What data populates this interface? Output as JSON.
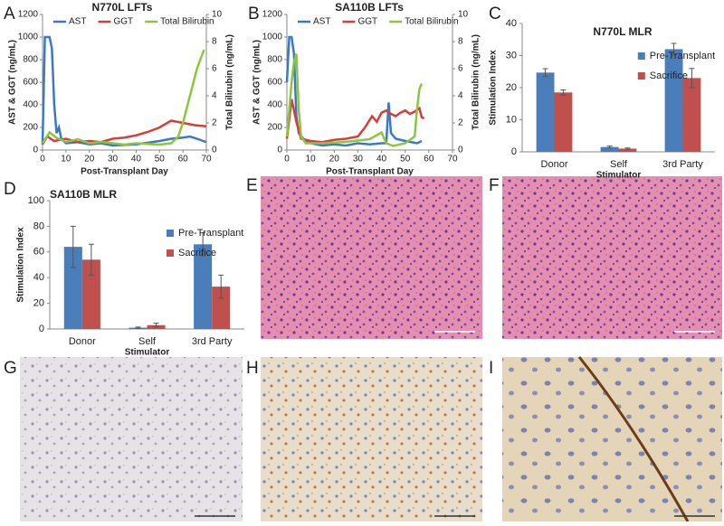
{
  "panel_labels": [
    "A",
    "B",
    "C",
    "D",
    "E",
    "F",
    "G",
    "H",
    "I"
  ],
  "chart_data": [
    {
      "type": "line",
      "title": "N770L LFTs",
      "xlabel": "Post-Transplant Day",
      "ylabel": "AST & GGT (ng/mL)",
      "y2label": "Total Bilirubin (ng/mL)",
      "xlim": [
        0,
        70
      ],
      "xticks": [
        0,
        10,
        20,
        30,
        40,
        50,
        60,
        70
      ],
      "ylim": [
        0,
        1200
      ],
      "yticks": [
        0,
        200,
        400,
        600,
        800,
        1000,
        1200
      ],
      "y2lim": [
        0,
        10
      ],
      "y2ticks": [
        0,
        2,
        4,
        6,
        8,
        10
      ],
      "legend": "top",
      "series": [
        {
          "name": "AST",
          "color": "#3c78c8",
          "x": [
            0,
            1,
            3,
            4,
            5,
            6,
            7,
            8,
            10,
            15,
            20,
            25,
            30,
            40,
            50,
            55,
            60,
            63,
            66,
            70
          ],
          "values": [
            50,
            1000,
            1000,
            900,
            400,
            150,
            200,
            100,
            60,
            70,
            50,
            60,
            40,
            50,
            80,
            100,
            110,
            120,
            100,
            70
          ]
        },
        {
          "name": "GGT",
          "color": "#d2403a",
          "x": [
            0,
            2,
            5,
            10,
            15,
            20,
            25,
            30,
            35,
            40,
            45,
            50,
            55,
            60,
            65,
            70
          ],
          "values": [
            50,
            120,
            80,
            100,
            70,
            80,
            70,
            100,
            110,
            130,
            160,
            200,
            260,
            240,
            220,
            210
          ]
        },
        {
          "name": "Total Bilirubin",
          "color": "#8cc63f",
          "axis": "y2",
          "x": [
            0,
            3,
            6,
            10,
            15,
            20,
            25,
            30,
            35,
            40,
            50,
            55,
            58,
            60,
            63,
            66,
            69
          ],
          "values": [
            0.5,
            1.3,
            0.9,
            0.6,
            0.8,
            0.5,
            0.6,
            0.5,
            0.4,
            0.5,
            0.4,
            0.5,
            1.0,
            2.0,
            4,
            6,
            7.4
          ]
        }
      ]
    },
    {
      "type": "line",
      "title": "SA110B LFTs",
      "xlabel": "Post-Transplant Day",
      "ylabel": "AST & GGT (ng/mL)",
      "y2label": "Total Bilirubin (ng/mL)",
      "xlim": [
        0,
        70
      ],
      "xticks": [
        0,
        10,
        20,
        30,
        40,
        50,
        60,
        70
      ],
      "ylim": [
        0,
        1200
      ],
      "yticks": [
        0,
        200,
        400,
        600,
        800,
        1000,
        1200
      ],
      "y2lim": [
        0,
        10
      ],
      "y2ticks": [
        0,
        2,
        4,
        6,
        8,
        10
      ],
      "legend": "top",
      "series": [
        {
          "name": "AST",
          "color": "#3c78c8",
          "x": [
            0,
            1,
            2,
            3,
            4,
            5,
            7,
            10,
            15,
            20,
            25,
            30,
            35,
            40,
            42,
            43,
            44,
            46,
            50,
            55,
            57
          ],
          "values": [
            600,
            1000,
            1000,
            850,
            300,
            150,
            100,
            60,
            40,
            50,
            40,
            60,
            50,
            60,
            60,
            420,
            150,
            100,
            80,
            60,
            80
          ]
        },
        {
          "name": "GGT",
          "color": "#d2403a",
          "x": [
            0,
            2,
            4,
            6,
            10,
            15,
            20,
            25,
            30,
            33,
            36,
            38,
            40,
            42,
            44,
            46,
            48,
            50,
            52,
            54,
            56,
            57,
            58
          ],
          "values": [
            100,
            450,
            250,
            100,
            80,
            70,
            90,
            100,
            120,
            200,
            300,
            250,
            330,
            350,
            320,
            300,
            330,
            350,
            320,
            340,
            370,
            290,
            280
          ]
        },
        {
          "name": "Total Bilirubin",
          "color": "#8cc63f",
          "axis": "y2",
          "x": [
            0,
            2,
            3,
            4,
            5,
            6,
            8,
            15,
            25,
            30,
            35,
            40,
            42,
            45,
            50,
            54,
            55,
            56,
            57
          ],
          "values": [
            1,
            5,
            6.5,
            7.1,
            3,
            1,
            0.5,
            0.5,
            0.6,
            0.7,
            0.8,
            1.3,
            0.5,
            0.3,
            0.5,
            1,
            3,
            4.5,
            4.9
          ]
        }
      ]
    },
    {
      "type": "bar",
      "title": "N770L MLR",
      "xlabel": "Stimulator",
      "ylabel": "Stimulation Index",
      "categories": [
        "Donor",
        "Self",
        "3rd Party"
      ],
      "ylim": [
        0,
        40
      ],
      "yticks": [
        0,
        10,
        20,
        30,
        40
      ],
      "legend": "right",
      "series": [
        {
          "name": "Pre-Transplant",
          "color": "#4a7ebb",
          "values": [
            24.7,
            1.5,
            32
          ],
          "errors": [
            1.2,
            0.3,
            1.8
          ]
        },
        {
          "name": "Sacrifice",
          "color": "#c0504d",
          "values": [
            18.5,
            1.0,
            23
          ],
          "errors": [
            0.8,
            0.2,
            3
          ]
        }
      ]
    },
    {
      "type": "bar",
      "title": "SA110B MLR",
      "xlabel": "Stimulator",
      "ylabel": "Stimulation Index",
      "categories": [
        "Donor",
        "Self",
        "3rd Party"
      ],
      "ylim": [
        0,
        100
      ],
      "yticks": [
        0,
        20,
        40,
        60,
        80,
        100
      ],
      "legend": "right",
      "series": [
        {
          "name": "Pre-Transplant",
          "color": "#4a7ebb",
          "values": [
            64,
            1,
            66
          ],
          "errors": [
            16,
            0.5,
            9
          ]
        },
        {
          "name": "Sacrifice",
          "color": "#c0504d",
          "values": [
            54,
            3,
            33
          ],
          "errors": [
            12,
            1.5,
            9
          ]
        }
      ]
    }
  ]
}
